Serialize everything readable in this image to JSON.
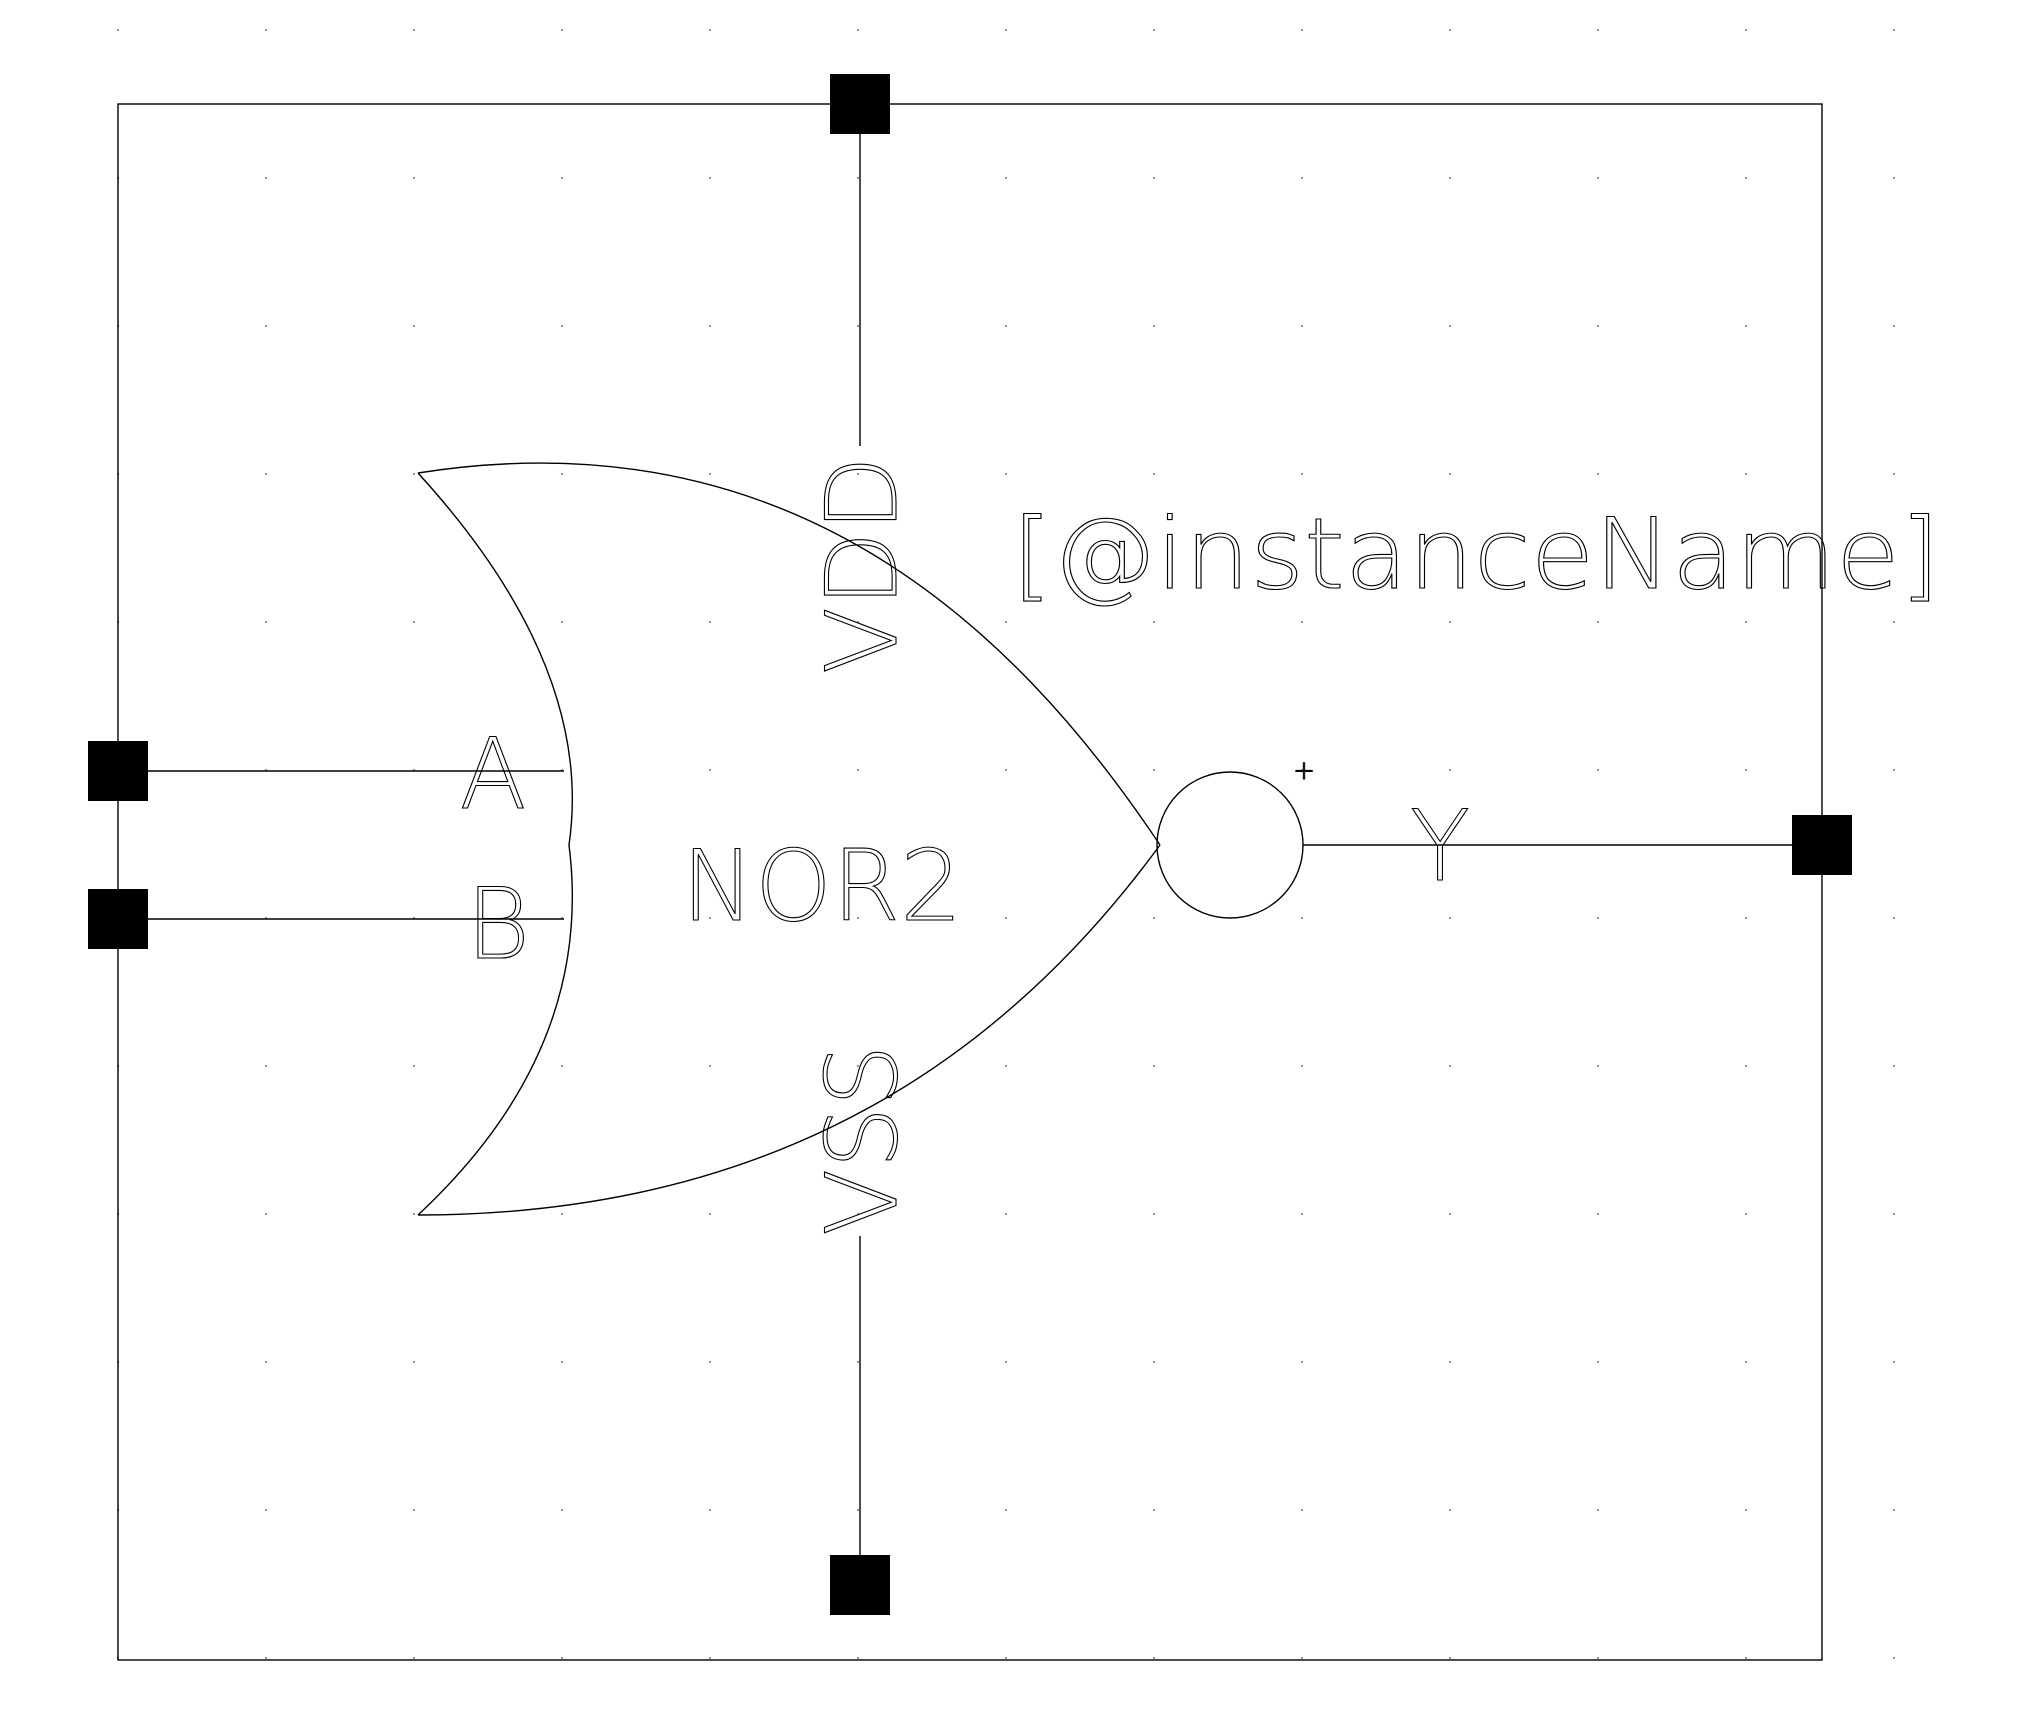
{
  "symbol": {
    "cell_name": "NOR2",
    "instance_label": "[@instanceName]",
    "origin_marker": "+"
  },
  "pins": {
    "A": "A",
    "B": "B",
    "Y": "Y",
    "VDD": "VDD",
    "VSS": "VSS"
  },
  "colors": {
    "background": "#ffffff",
    "lines": "#000000",
    "pin_fill": "#000000",
    "grid": "#9a9a9a"
  }
}
